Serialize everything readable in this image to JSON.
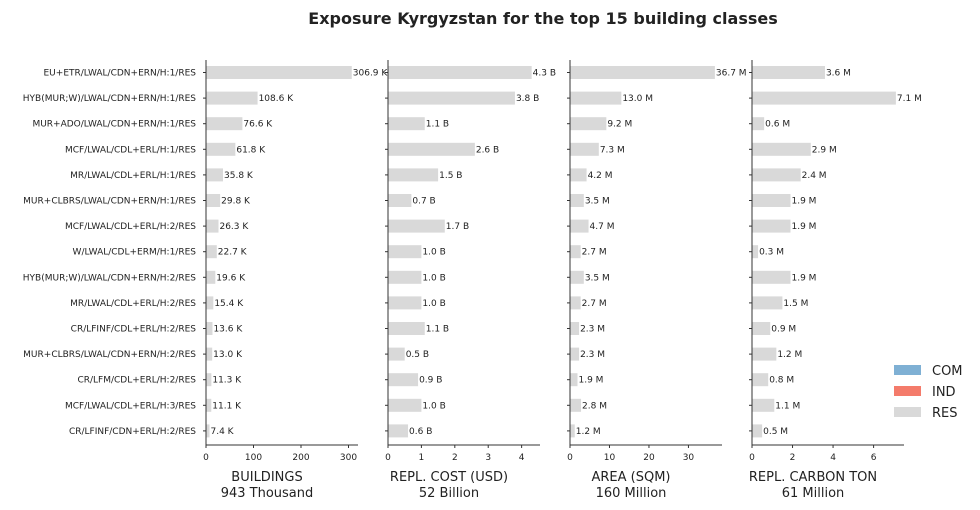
{
  "chart_data": {
    "type": "bar",
    "title": "Exposure Kyrgyzstan for the top 15 building classes",
    "categories": [
      "EU+ETR/LWAL/CDN+ERN/H:1/RES",
      "HYB(MUR;W)/LWAL/CDN+ERN/H:1/RES",
      "MUR+ADO/LWAL/CDN+ERN/H:1/RES",
      "MCF/LWAL/CDL+ERL/H:1/RES",
      "MR/LWAL/CDL+ERL/H:1/RES",
      "MUR+CLBRS/LWAL/CDN+ERN/H:1/RES",
      "MCF/LWAL/CDL+ERL/H:2/RES",
      "W/LWAL/CDL+ERM/H:1/RES",
      "HYB(MUR;W)/LWAL/CDN+ERN/H:2/RES",
      "MR/LWAL/CDL+ERL/H:2/RES",
      "CR/LFINF/CDL+ERL/H:2/RES",
      "MUR+CLBRS/LWAL/CDN+ERN/H:2/RES",
      "CR/LFM/CDL+ERL/H:2/RES",
      "MCF/LWAL/CDL+ERL/H:3/RES",
      "CR/LFINF/CDN+ERL/H:2/RES"
    ],
    "legend": {
      "placement": "right",
      "entries": [
        {
          "name": "COM",
          "color": "#7fb0d4"
        },
        {
          "name": "IND",
          "color": "#f47b6b"
        },
        {
          "name": "RES",
          "color": "#d9d9d9"
        }
      ]
    },
    "bar_color": "#d9d9d9",
    "panels": [
      {
        "xlabel": "BUILDINGS",
        "total": "943 Thousand",
        "xlim": [
          0,
          320
        ],
        "xticks": [
          0,
          100,
          200,
          300
        ],
        "series_name": "RES",
        "values": [
          306.9,
          108.6,
          76.6,
          61.8,
          35.8,
          29.8,
          26.3,
          22.7,
          19.6,
          15.4,
          13.6,
          13.0,
          11.3,
          11.1,
          7.4
        ],
        "value_labels": [
          "306.9 K",
          "108.6 K",
          "76.6 K",
          "61.8 K",
          "35.8 K",
          "29.8 K",
          "26.3 K",
          "22.7 K",
          "19.6 K",
          "15.4 K",
          "13.6 K",
          "13.0 K",
          "11.3 K",
          "11.1 K",
          "7.4 K"
        ]
      },
      {
        "xlabel": "REPL. COST (USD)",
        "total": "52 Billion",
        "xlim": [
          0,
          4.55
        ],
        "xticks": [
          0,
          1,
          2,
          3,
          4
        ],
        "series_name": "RES",
        "values": [
          4.3,
          3.8,
          1.1,
          2.6,
          1.5,
          0.7,
          1.7,
          1.0,
          1.0,
          1.0,
          1.1,
          0.5,
          0.9,
          1.0,
          0.6
        ],
        "value_labels": [
          "4.3 B",
          "3.8 B",
          "1.1 B",
          "2.6 B",
          "1.5 B",
          "0.7 B",
          "1.7 B",
          "1.0 B",
          "1.0 B",
          "1.0 B",
          "1.1 B",
          "0.5 B",
          "0.9 B",
          "1.0 B",
          "0.6 B"
        ]
      },
      {
        "xlabel": "AREA (SQM)",
        "total": "160 Million",
        "xlim": [
          0,
          38.5
        ],
        "xticks": [
          0,
          10,
          20,
          30
        ],
        "series_name": "RES",
        "values": [
          36.7,
          13.0,
          9.2,
          7.3,
          4.2,
          3.5,
          4.7,
          2.7,
          3.5,
          2.7,
          2.3,
          2.3,
          1.9,
          2.8,
          1.2
        ],
        "value_labels": [
          "36.7 M",
          "13.0 M",
          "9.2 M",
          "7.3 M",
          "4.2 M",
          "3.5 M",
          "4.7 M",
          "2.7 M",
          "3.5 M",
          "2.7 M",
          "2.3 M",
          "2.3 M",
          "1.9 M",
          "2.8 M",
          "1.2 M"
        ]
      },
      {
        "xlabel": "REPL. CARBON TON",
        "total": "61 Million",
        "xlim": [
          0,
          7.5
        ],
        "xticks": [
          0,
          2,
          4,
          6
        ],
        "series_name": "RES",
        "values": [
          3.6,
          7.1,
          0.6,
          2.9,
          2.4,
          1.9,
          1.9,
          0.3,
          1.9,
          1.5,
          0.9,
          1.2,
          0.8,
          1.1,
          0.5
        ],
        "value_labels": [
          "3.6 M",
          "7.1 M",
          "0.6 M",
          "2.9 M",
          "2.4 M",
          "1.9 M",
          "1.9 M",
          "0.3 M",
          "1.9 M",
          "1.5 M",
          "0.9 M",
          "1.2 M",
          "0.8 M",
          "1.1 M",
          "0.5 M"
        ]
      }
    ]
  }
}
